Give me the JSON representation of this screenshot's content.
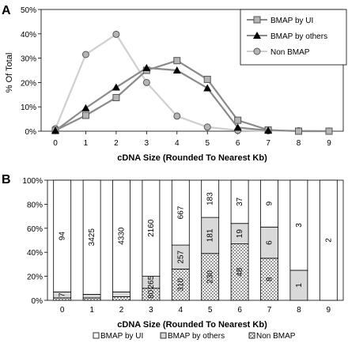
{
  "chart_data": [
    {
      "panel_label": "A",
      "type": "line",
      "x": [
        0,
        1,
        2,
        3,
        4,
        5,
        6,
        7,
        8,
        9
      ],
      "xlabel": "cDNA Size (Rounded To Nearest Kb)",
      "ylabel": "% Of Total",
      "xticks": [
        "0",
        "1",
        "2",
        "3",
        "4",
        "5",
        "6",
        "7",
        "8",
        "9"
      ],
      "yticks": [
        "0%",
        "10%",
        "20%",
        "30%",
        "40%",
        "50%"
      ],
      "ylim": [
        0,
        50
      ],
      "legend_position": "top-right",
      "series": [
        {
          "name": "BMAP by UI",
          "marker": "square",
          "color": "#8a8a8a",
          "marker_fill": "#b5b5b5",
          "values": [
            0.3,
            6.5,
            13.8,
            25.0,
            29.0,
            21.3,
            4.5,
            0.5,
            0,
            0
          ]
        },
        {
          "name": "BMAP by others",
          "marker": "triangle",
          "color": "#8a8a8a",
          "marker_fill": "#000000",
          "values": [
            0.2,
            9.5,
            18.0,
            26.0,
            25.0,
            17.7,
            1.5,
            0.3,
            null,
            null
          ]
        },
        {
          "name": "Non BMAP",
          "marker": "circle",
          "color": "#cfcfcf",
          "marker_fill": "#b5b5b5",
          "values": [
            1.0,
            31.5,
            39.8,
            20.0,
            6.2,
            1.7,
            0.3,
            0.2,
            0.2,
            0.1
          ]
        }
      ]
    },
    {
      "panel_label": "B",
      "type": "bar",
      "stacked": true,
      "categories": [
        "0",
        "1",
        "2",
        "3",
        "4",
        "5",
        "6",
        "7",
        "8",
        "9"
      ],
      "xlabel": "cDNA Size (Rounded To Nearest Kb)",
      "yticks": [
        "0%",
        "20%",
        "40%",
        "60%",
        "80%",
        "100%"
      ],
      "ylim": [
        0,
        100
      ],
      "legend_position": "bottom",
      "series": [
        {
          "name": "Non BMAP",
          "pattern": "checker",
          "color": "#e6e6e6",
          "percent": [
            2,
            2,
            3,
            10,
            26,
            39,
            47,
            35,
            0,
            0
          ],
          "labels": [
            "",
            "",
            "",
            "80",
            "310",
            "230",
            "48",
            "8",
            "",
            ""
          ]
        },
        {
          "name": "BMAP by others",
          "pattern": "solid",
          "color": "#d9d9d9",
          "percent": [
            5,
            3,
            4,
            10,
            20,
            30,
            17,
            26,
            25,
            0
          ],
          "labels": [
            "7",
            "",
            "",
            "265",
            "257",
            "181",
            "19",
            "6",
            "1",
            ""
          ]
        },
        {
          "name": "BMAP by UI",
          "pattern": "none",
          "color": "#ffffff",
          "percent": [
            93,
            95,
            93,
            80,
            54,
            31,
            36,
            39,
            75,
            100
          ],
          "labels": [
            "94",
            "3425",
            "4330",
            "2160",
            "667",
            "183",
            "37",
            "9",
            "3",
            "2"
          ]
        }
      ]
    }
  ],
  "legend_b": [
    "BMAP by UI",
    "BMAP by others",
    "Non BMAP"
  ]
}
